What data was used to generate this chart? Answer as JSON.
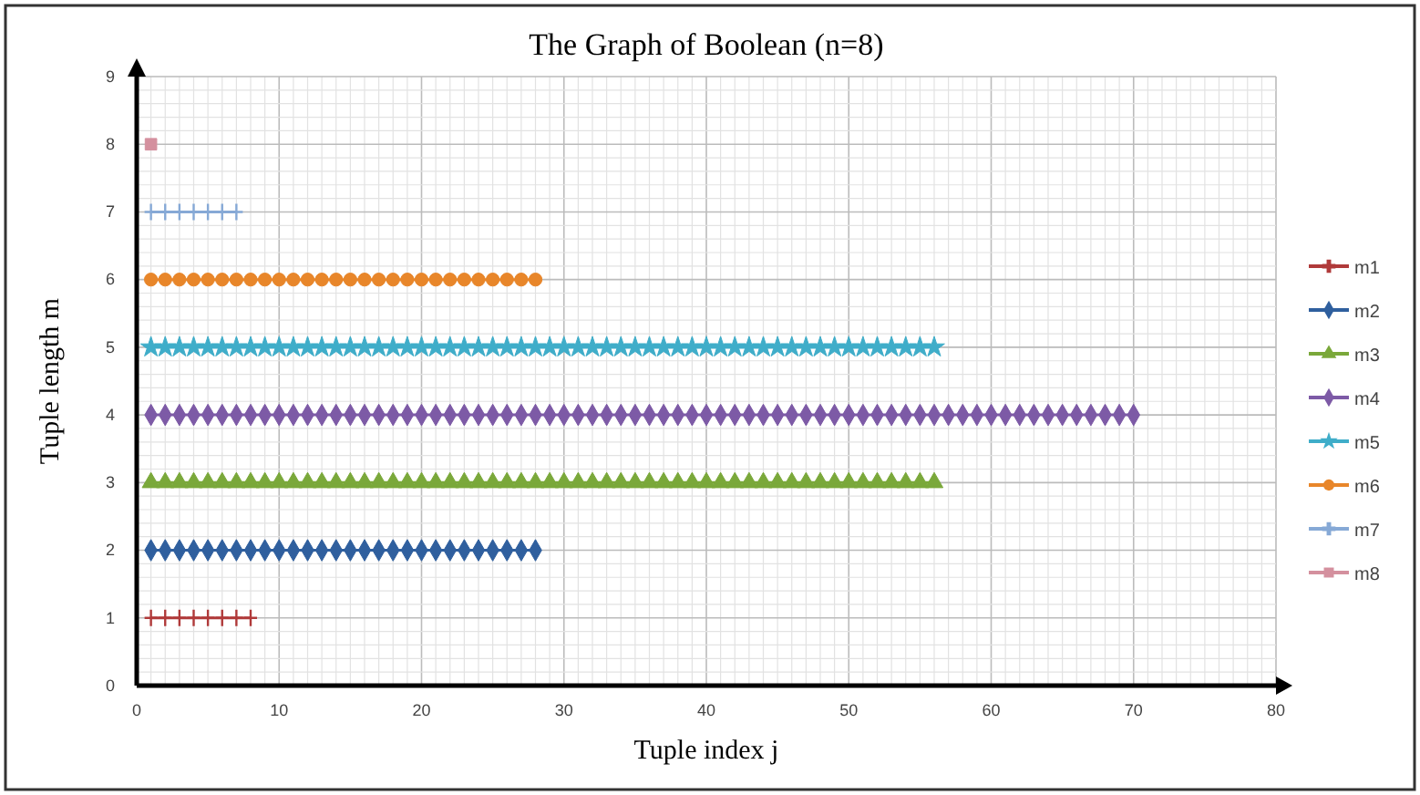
{
  "chart_data": {
    "type": "line",
    "title": "The Graph of Boolean (n=8)",
    "xlabel": "Tuple index j",
    "ylabel": "Tuple length m",
    "xlim": [
      0,
      80
    ],
    "xticks": [
      0,
      10,
      20,
      30,
      40,
      50,
      60,
      70,
      80
    ],
    "ylim": [
      0,
      9
    ],
    "yticks": [
      0,
      1,
      2,
      3,
      4,
      5,
      6,
      7,
      8,
      9
    ],
    "grid": true,
    "legend": "right",
    "series": [
      {
        "name": "m1",
        "color": "#b03a3a",
        "marker": "cross",
        "x": [
          1,
          2,
          3,
          4,
          5,
          6,
          7,
          8
        ],
        "values": [
          1,
          1,
          1,
          1,
          1,
          1,
          1,
          1
        ]
      },
      {
        "name": "m2",
        "color": "#2f5f9e",
        "marker": "diamond",
        "x": [
          1,
          2,
          3,
          4,
          5,
          6,
          7,
          8,
          9,
          10,
          11,
          12,
          13,
          14,
          15,
          16,
          17,
          18,
          19,
          20,
          21,
          22,
          23,
          24,
          25,
          26,
          27,
          28
        ],
        "values": [
          2,
          2,
          2,
          2,
          2,
          2,
          2,
          2,
          2,
          2,
          2,
          2,
          2,
          2,
          2,
          2,
          2,
          2,
          2,
          2,
          2,
          2,
          2,
          2,
          2,
          2,
          2,
          2
        ]
      },
      {
        "name": "m3",
        "color": "#7aa83a",
        "marker": "triangle",
        "x": [
          1,
          2,
          3,
          4,
          5,
          6,
          7,
          8,
          9,
          10,
          11,
          12,
          13,
          14,
          15,
          16,
          17,
          18,
          19,
          20,
          21,
          22,
          23,
          24,
          25,
          26,
          27,
          28,
          29,
          30,
          31,
          32,
          33,
          34,
          35,
          36,
          37,
          38,
          39,
          40,
          41,
          42,
          43,
          44,
          45,
          46,
          47,
          48,
          49,
          50,
          51,
          52,
          53,
          54,
          55,
          56
        ],
        "values": [
          3,
          3,
          3,
          3,
          3,
          3,
          3,
          3,
          3,
          3,
          3,
          3,
          3,
          3,
          3,
          3,
          3,
          3,
          3,
          3,
          3,
          3,
          3,
          3,
          3,
          3,
          3,
          3,
          3,
          3,
          3,
          3,
          3,
          3,
          3,
          3,
          3,
          3,
          3,
          3,
          3,
          3,
          3,
          3,
          3,
          3,
          3,
          3,
          3,
          3,
          3,
          3,
          3,
          3,
          3,
          3
        ]
      },
      {
        "name": "m4",
        "color": "#7d5aa6",
        "marker": "diamond",
        "x": [
          1,
          2,
          3,
          4,
          5,
          6,
          7,
          8,
          9,
          10,
          11,
          12,
          13,
          14,
          15,
          16,
          17,
          18,
          19,
          20,
          21,
          22,
          23,
          24,
          25,
          26,
          27,
          28,
          29,
          30,
          31,
          32,
          33,
          34,
          35,
          36,
          37,
          38,
          39,
          40,
          41,
          42,
          43,
          44,
          45,
          46,
          47,
          48,
          49,
          50,
          51,
          52,
          53,
          54,
          55,
          56,
          57,
          58,
          59,
          60,
          61,
          62,
          63,
          64,
          65,
          66,
          67,
          68,
          69,
          70
        ],
        "values": [
          4,
          4,
          4,
          4,
          4,
          4,
          4,
          4,
          4,
          4,
          4,
          4,
          4,
          4,
          4,
          4,
          4,
          4,
          4,
          4,
          4,
          4,
          4,
          4,
          4,
          4,
          4,
          4,
          4,
          4,
          4,
          4,
          4,
          4,
          4,
          4,
          4,
          4,
          4,
          4,
          4,
          4,
          4,
          4,
          4,
          4,
          4,
          4,
          4,
          4,
          4,
          4,
          4,
          4,
          4,
          4,
          4,
          4,
          4,
          4,
          4,
          4,
          4,
          4,
          4,
          4,
          4,
          4,
          4,
          4
        ]
      },
      {
        "name": "m5",
        "color": "#3fadc9",
        "marker": "star",
        "x": [
          1,
          2,
          3,
          4,
          5,
          6,
          7,
          8,
          9,
          10,
          11,
          12,
          13,
          14,
          15,
          16,
          17,
          18,
          19,
          20,
          21,
          22,
          23,
          24,
          25,
          26,
          27,
          28,
          29,
          30,
          31,
          32,
          33,
          34,
          35,
          36,
          37,
          38,
          39,
          40,
          41,
          42,
          43,
          44,
          45,
          46,
          47,
          48,
          49,
          50,
          51,
          52,
          53,
          54,
          55,
          56
        ],
        "values": [
          5,
          5,
          5,
          5,
          5,
          5,
          5,
          5,
          5,
          5,
          5,
          5,
          5,
          5,
          5,
          5,
          5,
          5,
          5,
          5,
          5,
          5,
          5,
          5,
          5,
          5,
          5,
          5,
          5,
          5,
          5,
          5,
          5,
          5,
          5,
          5,
          5,
          5,
          5,
          5,
          5,
          5,
          5,
          5,
          5,
          5,
          5,
          5,
          5,
          5,
          5,
          5,
          5,
          5,
          5,
          5
        ]
      },
      {
        "name": "m6",
        "color": "#e8862a",
        "marker": "circle",
        "x": [
          1,
          2,
          3,
          4,
          5,
          6,
          7,
          8,
          9,
          10,
          11,
          12,
          13,
          14,
          15,
          16,
          17,
          18,
          19,
          20,
          21,
          22,
          23,
          24,
          25,
          26,
          27,
          28
        ],
        "values": [
          6,
          6,
          6,
          6,
          6,
          6,
          6,
          6,
          6,
          6,
          6,
          6,
          6,
          6,
          6,
          6,
          6,
          6,
          6,
          6,
          6,
          6,
          6,
          6,
          6,
          6,
          6,
          6
        ]
      },
      {
        "name": "m7",
        "color": "#86a9d6",
        "marker": "cross",
        "x": [
          1,
          2,
          3,
          4,
          5,
          6,
          7
        ],
        "values": [
          7,
          7,
          7,
          7,
          7,
          7,
          7
        ]
      },
      {
        "name": "m8",
        "color": "#d4909e",
        "marker": "square",
        "x": [
          1
        ],
        "values": [
          8
        ]
      }
    ]
  }
}
